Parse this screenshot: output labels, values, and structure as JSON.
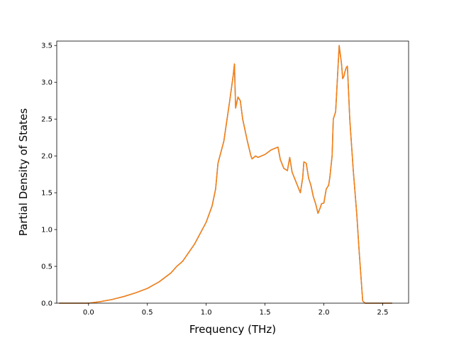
{
  "chart_data": {
    "type": "line",
    "title": "",
    "xlabel": "Frequency (THz)",
    "ylabel": "Partial Density of States",
    "xlim": [
      -0.27,
      2.72
    ],
    "ylim": [
      0.0,
      3.56
    ],
    "x_ticks": [
      0.0,
      0.5,
      1.0,
      1.5,
      2.0,
      2.5
    ],
    "x_tick_labels": [
      "0.0",
      "0.5",
      "1.0",
      "1.5",
      "2.0",
      "2.5"
    ],
    "y_ticks": [
      0.0,
      0.5,
      1.0,
      1.5,
      2.0,
      2.5,
      3.0,
      3.5
    ],
    "y_tick_labels": [
      "0.0",
      "0.5",
      "1.0",
      "1.5",
      "2.0",
      "2.5",
      "3.0",
      "3.5"
    ],
    "grid": false,
    "legend": "none",
    "series": [
      {
        "color": "#1f77b4",
        "x": [
          -0.25,
          0.0,
          0.1,
          0.2,
          0.3,
          0.4,
          0.5,
          0.6,
          0.7,
          0.75,
          0.8,
          0.9,
          1.0,
          1.05,
          1.08,
          1.1,
          1.15,
          1.2,
          1.23,
          1.24,
          1.25,
          1.27,
          1.29,
          1.31,
          1.35,
          1.38,
          1.39,
          1.42,
          1.44,
          1.5,
          1.55,
          1.58,
          1.61,
          1.63,
          1.66,
          1.69,
          1.71,
          1.73,
          1.77,
          1.8,
          1.82,
          1.83,
          1.85,
          1.87,
          1.89,
          1.91,
          1.93,
          1.95,
          1.97,
          1.98,
          2.0,
          2.02,
          2.04,
          2.05,
          2.07,
          2.08,
          2.1,
          2.13,
          2.15,
          2.16,
          2.17,
          2.18,
          2.19,
          2.2,
          2.22,
          2.25,
          2.28,
          2.3,
          2.33,
          2.35,
          2.4,
          2.58
        ],
        "y": [
          0.0,
          0.0,
          0.02,
          0.05,
          0.09,
          0.14,
          0.2,
          0.29,
          0.41,
          0.5,
          0.57,
          0.8,
          1.1,
          1.32,
          1.55,
          1.9,
          2.2,
          2.75,
          3.1,
          3.25,
          2.65,
          2.8,
          2.75,
          2.5,
          2.2,
          2.0,
          1.96,
          2.0,
          1.98,
          2.02,
          2.08,
          2.1,
          2.12,
          1.95,
          1.83,
          1.8,
          1.98,
          1.78,
          1.62,
          1.5,
          1.7,
          1.92,
          1.9,
          1.7,
          1.6,
          1.45,
          1.35,
          1.22,
          1.3,
          1.35,
          1.36,
          1.55,
          1.6,
          1.7,
          2.0,
          2.5,
          2.6,
          3.5,
          3.25,
          3.05,
          3.08,
          3.15,
          3.2,
          3.22,
          2.5,
          1.8,
          1.2,
          0.7,
          0.03,
          0.0,
          0.0,
          0.0
        ]
      },
      {
        "color": "#ff7f0e",
        "x": [
          -0.25,
          0.0,
          0.1,
          0.2,
          0.3,
          0.4,
          0.5,
          0.6,
          0.7,
          0.75,
          0.8,
          0.9,
          1.0,
          1.05,
          1.08,
          1.1,
          1.15,
          1.2,
          1.23,
          1.24,
          1.25,
          1.27,
          1.29,
          1.31,
          1.35,
          1.38,
          1.39,
          1.42,
          1.44,
          1.5,
          1.55,
          1.58,
          1.61,
          1.63,
          1.66,
          1.69,
          1.71,
          1.73,
          1.77,
          1.8,
          1.82,
          1.83,
          1.85,
          1.87,
          1.89,
          1.91,
          1.93,
          1.95,
          1.97,
          1.98,
          2.0,
          2.02,
          2.04,
          2.05,
          2.07,
          2.08,
          2.1,
          2.13,
          2.15,
          2.16,
          2.17,
          2.18,
          2.19,
          2.2,
          2.22,
          2.25,
          2.28,
          2.3,
          2.33,
          2.35,
          2.4,
          2.58
        ],
        "y": [
          0.0,
          0.0,
          0.02,
          0.05,
          0.09,
          0.14,
          0.2,
          0.29,
          0.41,
          0.5,
          0.57,
          0.8,
          1.1,
          1.32,
          1.55,
          1.9,
          2.2,
          2.75,
          3.1,
          3.25,
          2.65,
          2.8,
          2.75,
          2.5,
          2.2,
          2.0,
          1.96,
          2.0,
          1.98,
          2.02,
          2.08,
          2.1,
          2.12,
          1.95,
          1.83,
          1.8,
          1.98,
          1.78,
          1.62,
          1.5,
          1.7,
          1.92,
          1.9,
          1.7,
          1.6,
          1.45,
          1.35,
          1.22,
          1.3,
          1.35,
          1.36,
          1.55,
          1.6,
          1.7,
          2.0,
          2.5,
          2.6,
          3.5,
          3.25,
          3.05,
          3.08,
          3.15,
          3.2,
          3.22,
          2.5,
          1.8,
          1.2,
          0.7,
          0.03,
          0.0,
          0.0,
          0.0
        ]
      }
    ]
  }
}
